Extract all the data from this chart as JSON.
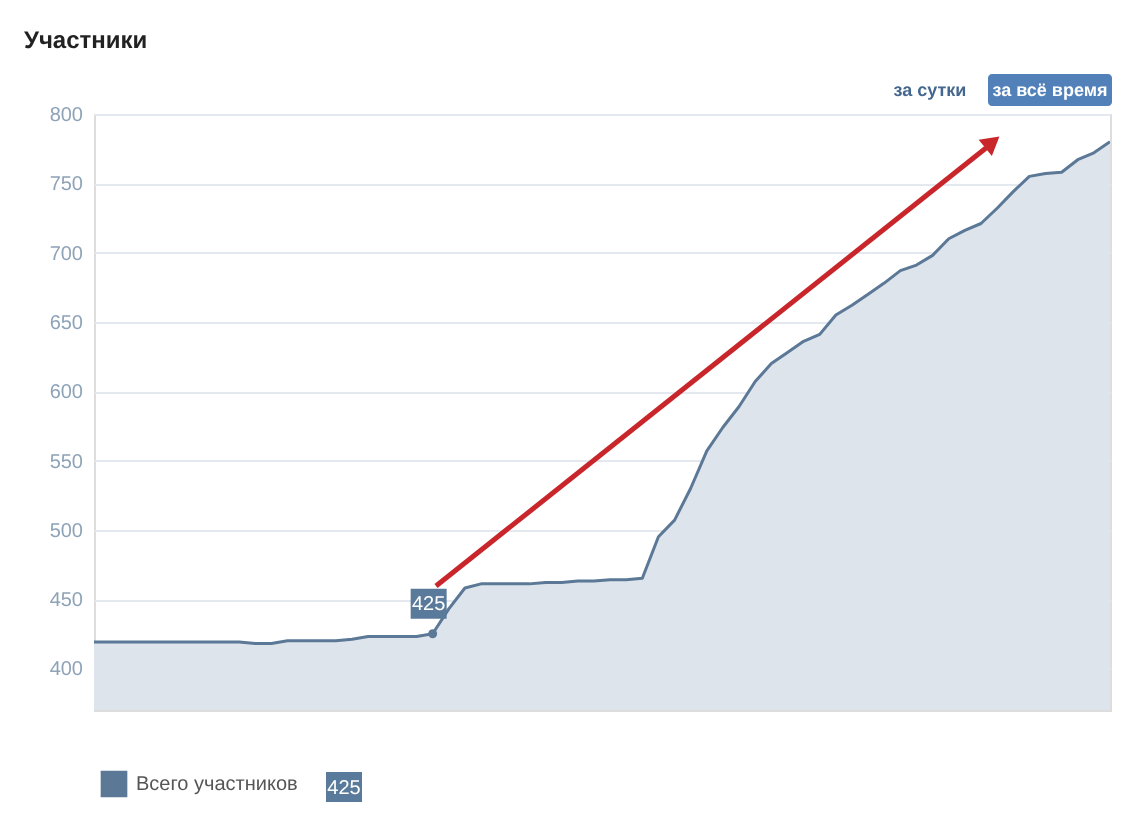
{
  "chart_data": {
    "type": "area",
    "title": "Участники",
    "categories": [
      null,
      null,
      null,
      null,
      null,
      null,
      null,
      null,
      null,
      null,
      null,
      null,
      null,
      null,
      null,
      null,
      null,
      null,
      null,
      null,
      null,
      null,
      null,
      null,
      null,
      null,
      null,
      null,
      null,
      null,
      null,
      null,
      null,
      null,
      null,
      null,
      null,
      null,
      null,
      null,
      null,
      null,
      null,
      null,
      null,
      null,
      null,
      null,
      null,
      null,
      null,
      null,
      null,
      null,
      null,
      null,
      null,
      null,
      null,
      null,
      null,
      null,
      null,
      null
    ],
    "series": [
      {
        "name": "Всего участников",
        "color": "#5b7896",
        "values": [
          419,
          419,
          419,
          419,
          419,
          419,
          419,
          419,
          419,
          419,
          418,
          418,
          420,
          420,
          420,
          420,
          421,
          423,
          423,
          423,
          423,
          425,
          443,
          458,
          461,
          461,
          461,
          461,
          462,
          462,
          463,
          463,
          464,
          464,
          465,
          495,
          507,
          530,
          557,
          574,
          589,
          607,
          620,
          628,
          636,
          641,
          655,
          662,
          670,
          678,
          687,
          691,
          698,
          710,
          716,
          721,
          732,
          744,
          755,
          757,
          758,
          767,
          772,
          780
        ]
      }
    ],
    "ylim": [
      370,
      800
    ],
    "yticks": [
      400,
      450,
      500,
      550,
      600,
      650,
      700,
      750,
      800
    ],
    "grid": "y",
    "legend": "bottom left",
    "tick_labels": "y",
    "marker": "none",
    "annotations": [
      "за сутки",
      "за всё время",
      {
        "text": "425",
        "y": 425
      },
      "425"
    ]
  }
}
